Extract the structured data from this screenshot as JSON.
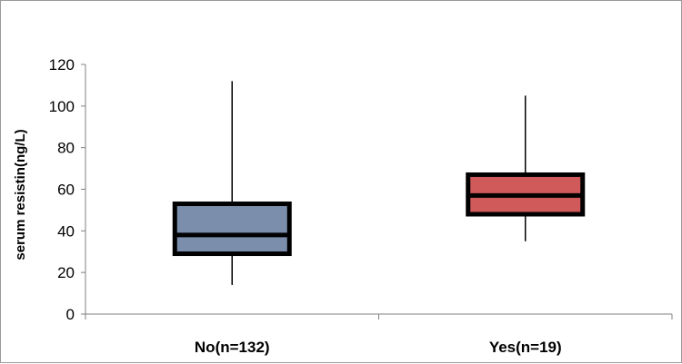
{
  "chart_data": {
    "type": "box",
    "ylabel": "serum resistin(ng/L)",
    "xlabel": "",
    "ylim": [
      0,
      120
    ],
    "yticks": [
      0,
      20,
      40,
      60,
      80,
      100,
      120
    ],
    "grid": false,
    "legend": "none",
    "categories": [
      "No(n=132)",
      "Yes(n=19)"
    ],
    "boxes": [
      {
        "category": "No(n=132)",
        "min": 14,
        "q1": 29,
        "median": 38,
        "q3": 53,
        "max": 112,
        "color": "#7b8fad"
      },
      {
        "category": "Yes(n=19)",
        "min": 35,
        "q1": 48,
        "median": 57,
        "q3": 67,
        "max": 105,
        "color": "#d05a5a"
      }
    ]
  }
}
